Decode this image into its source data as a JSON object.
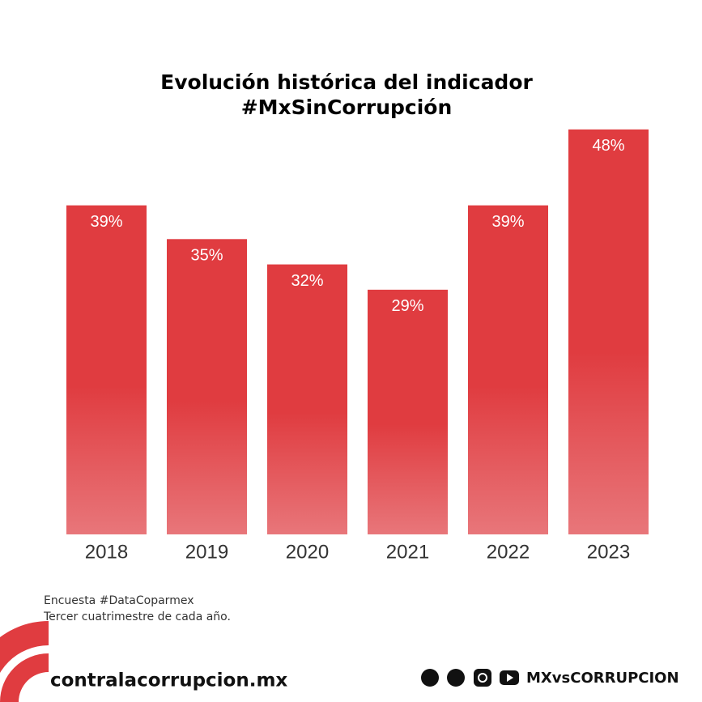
{
  "chart_data": {
    "type": "bar",
    "title": "Evolución histórica del indicador",
    "subtitle": "#MxSinCorrupción",
    "categories": [
      "2018",
      "2019",
      "2020",
      "2021",
      "2022",
      "2023"
    ],
    "values": [
      39,
      35,
      32,
      29,
      39,
      48
    ],
    "value_labels": [
      "39%",
      "35%",
      "32%",
      "29%",
      "39%",
      "48%"
    ],
    "color": "#e03c40"
  },
  "notes": [
    "Encuesta #DataCoparmex",
    "Tercer cuatrimestre de cada año."
  ],
  "footer": {
    "website": "contralacorrupcion.mx",
    "handle": "MXvsCORRUPCION"
  }
}
